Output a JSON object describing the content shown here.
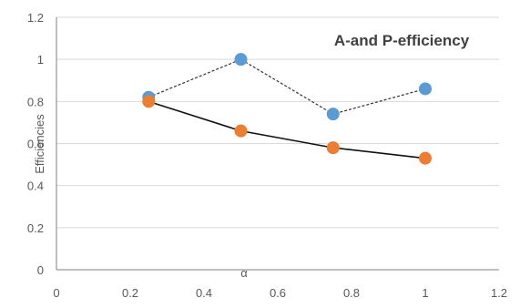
{
  "chart_data": {
    "type": "line",
    "title": "A-and P-efficiency",
    "xlabel": "α",
    "ylabel": "Efficiencies",
    "xlim": [
      0,
      1.2
    ],
    "ylim": [
      0,
      1.2
    ],
    "x_ticks": [
      0,
      0.2,
      0.4,
      0.6,
      0.8,
      1,
      1.2
    ],
    "y_ticks": [
      0,
      0.2,
      0.4,
      0.6,
      0.8,
      1,
      1.2
    ],
    "x_tick_labels": [
      "0",
      "0.2",
      "0.4",
      "0.6",
      "0.8",
      "1",
      "1.2"
    ],
    "y_tick_labels": [
      "0",
      "0.2",
      "0.4",
      "0.6",
      "0.8",
      "1",
      "1.2"
    ],
    "grid": "horizontal",
    "legend": "none",
    "series": [
      {
        "x": [
          0.25,
          0.5,
          0.75,
          1.0
        ],
        "values": [
          0.82,
          1.0,
          0.74,
          0.86
        ],
        "color": "#5b9bd5",
        "line_color": "#333333",
        "line_style": "dashed"
      },
      {
        "x": [
          0.25,
          0.5,
          0.75,
          1.0
        ],
        "values": [
          0.8,
          0.66,
          0.58,
          0.53
        ],
        "color": "#ed7d31",
        "line_color": "#111111",
        "line_style": "solid"
      }
    ]
  }
}
